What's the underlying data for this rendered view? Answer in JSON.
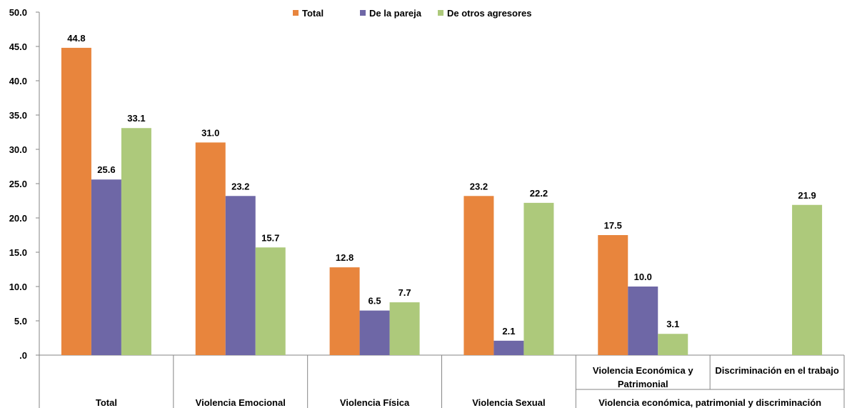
{
  "chart_data": {
    "type": "bar",
    "title": "",
    "xlabel": "",
    "ylabel": "",
    "ylim": [
      0,
      50
    ],
    "y_ticks": [
      ".0",
      "5.0",
      "10.0",
      "15.0",
      "20.0",
      "25.0",
      "30.0",
      "35.0",
      "40.0",
      "45.0",
      "50.0"
    ],
    "legend_position": "top-center",
    "categories": [
      "Total",
      "Violencia Emocional",
      "Violencia Física",
      "Violencia Sexual",
      "Violencia Económica y Patrimonial",
      "Discriminación en el trabajo"
    ],
    "category_lines": [
      [
        "Total"
      ],
      [
        "Violencia Emocional"
      ],
      [
        "Violencia Física"
      ],
      [
        "Violencia Sexual"
      ],
      [
        "Violencia Económica y",
        "Patrimonial"
      ],
      [
        "Discriminación en el trabajo"
      ]
    ],
    "group_label": "Violencia económica, patrimonial y discriminación",
    "series": [
      {
        "name": "Total",
        "color": "#E8853D",
        "values": [
          44.8,
          31.0,
          12.8,
          23.2,
          17.5,
          null
        ],
        "labels": [
          "44.8",
          "31.0",
          "12.8",
          "23.2",
          "17.5",
          null
        ]
      },
      {
        "name": "De la pareja",
        "color": "#6E67A6",
        "values": [
          25.6,
          23.2,
          6.5,
          2.1,
          10.0,
          null
        ],
        "labels": [
          "25.6",
          "23.2",
          "6.5",
          "2.1",
          "10.0",
          null
        ]
      },
      {
        "name": "De otros agresores",
        "color": "#ADC97B",
        "values": [
          33.1,
          15.7,
          7.7,
          22.2,
          3.1,
          21.9
        ],
        "labels": [
          "33.1",
          "15.7",
          "7.7",
          "22.2",
          "3.1",
          "21.9"
        ]
      }
    ]
  }
}
